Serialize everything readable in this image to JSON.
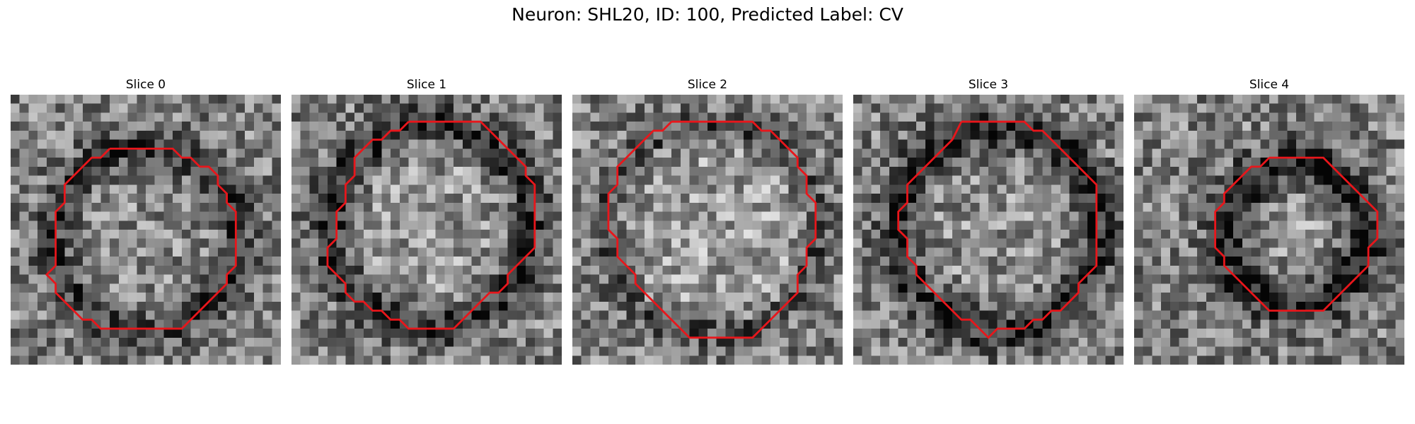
{
  "figure": {
    "title": "Neuron: SHL20, ID: 100, Predicted Label: CV"
  },
  "contour_color": "#e8161b",
  "panels": [
    {
      "title": "Slice 0",
      "seed": 11,
      "ring": "dark-rim-lower",
      "bright": 0.55
    },
    {
      "title": "Slice 1",
      "seed": 23,
      "ring": "dark-rim-top",
      "bright": 0.65
    },
    {
      "title": "Slice 2",
      "seed": 37,
      "ring": "faint",
      "bright": 0.7
    },
    {
      "title": "Slice 3",
      "seed": 41,
      "ring": "dark-rim",
      "bright": 0.6
    },
    {
      "title": "Slice 4",
      "seed": 53,
      "ring": "small-dark",
      "bright": 0.62
    }
  ]
}
